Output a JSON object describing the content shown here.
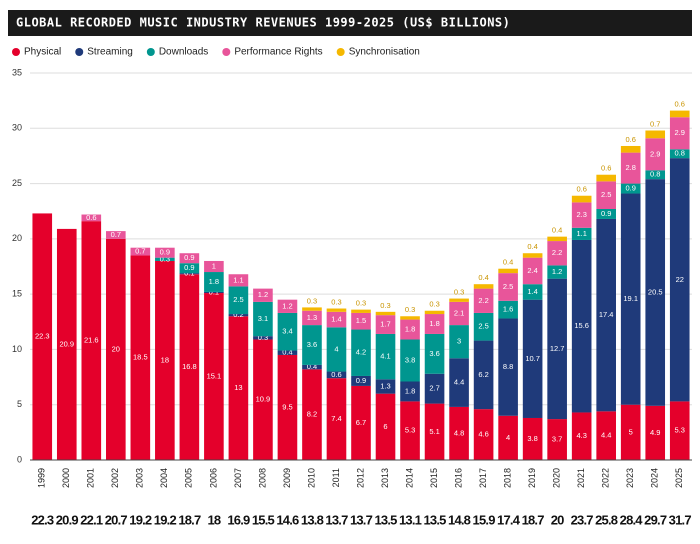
{
  "chart_data": {
    "type": "stacked-bar",
    "title": "GLOBAL RECORDED MUSIC INDUSTRY REVENUES 1999-2025 (US$ BILLIONS)",
    "categories": [
      "1999",
      "2000",
      "2001",
      "2002",
      "2003",
      "2004",
      "2005",
      "2006",
      "2007",
      "2008",
      "2009",
      "2010",
      "2011",
      "2012",
      "2013",
      "2014",
      "2015",
      "2016",
      "2017",
      "2018",
      "2019",
      "2020",
      "2021",
      "2022",
      "2023",
      "2024",
      "2025"
    ],
    "series": [
      {
        "name": "Physical",
        "color": "#e4002b",
        "values": [
          22.3,
          20.9,
          21.6,
          20.0,
          18.5,
          18.0,
          16.8,
          15.1,
          13.0,
          10.9,
          9.5,
          8.2,
          7.4,
          6.7,
          6.0,
          5.3,
          5.1,
          4.8,
          4.6,
          4.0,
          3.8,
          3.7,
          4.3,
          4.4,
          5.0,
          4.9,
          5.3
        ]
      },
      {
        "name": "Streaming",
        "color": "#1f3a7a",
        "values": [
          null,
          null,
          null,
          null,
          null,
          null,
          0.1,
          0.1,
          0.2,
          0.3,
          0.4,
          0.4,
          0.6,
          0.9,
          1.3,
          1.8,
          2.7,
          4.4,
          6.2,
          8.8,
          10.7,
          12.7,
          15.6,
          17.4,
          19.1,
          20.5,
          22.0
        ]
      },
      {
        "name": "Downloads",
        "color": "#00968f",
        "values": [
          null,
          null,
          null,
          null,
          null,
          0.3,
          0.9,
          1.8,
          2.5,
          3.1,
          3.4,
          3.6,
          4.0,
          4.2,
          4.1,
          3.8,
          3.6,
          3.0,
          2.5,
          1.6,
          1.4,
          1.2,
          1.1,
          0.9,
          0.9,
          0.8,
          0.8
        ]
      },
      {
        "name": "Performance Rights",
        "color": "#e8559a",
        "values": [
          null,
          null,
          0.6,
          0.7,
          0.7,
          0.9,
          0.9,
          1.0,
          1.1,
          1.2,
          1.2,
          1.3,
          1.4,
          1.5,
          1.7,
          1.8,
          1.8,
          2.1,
          2.2,
          2.5,
          2.4,
          2.2,
          2.3,
          2.5,
          2.8,
          2.9,
          2.9
        ]
      },
      {
        "name": "Synchronisation",
        "color": "#f5b800",
        "values": [
          null,
          null,
          null,
          null,
          null,
          null,
          null,
          null,
          null,
          null,
          null,
          0.3,
          0.3,
          0.3,
          0.3,
          0.3,
          0.3,
          0.3,
          0.4,
          0.4,
          0.4,
          0.4,
          0.6,
          0.6,
          0.6,
          0.7,
          0.6
        ]
      }
    ],
    "totals": [
      22.3,
      20.9,
      22.1,
      20.7,
      19.2,
      19.2,
      18.7,
      18.0,
      16.9,
      15.5,
      14.6,
      13.8,
      13.7,
      13.7,
      13.5,
      13.1,
      13.5,
      14.8,
      15.9,
      17.4,
      18.7,
      20.0,
      23.7,
      25.8,
      28.4,
      29.7,
      31.7
    ],
    "ylim": [
      0,
      35
    ],
    "yticks": [
      0,
      5,
      10,
      15,
      20,
      25,
      30,
      35
    ],
    "grid": true,
    "legend": "top-left"
  }
}
